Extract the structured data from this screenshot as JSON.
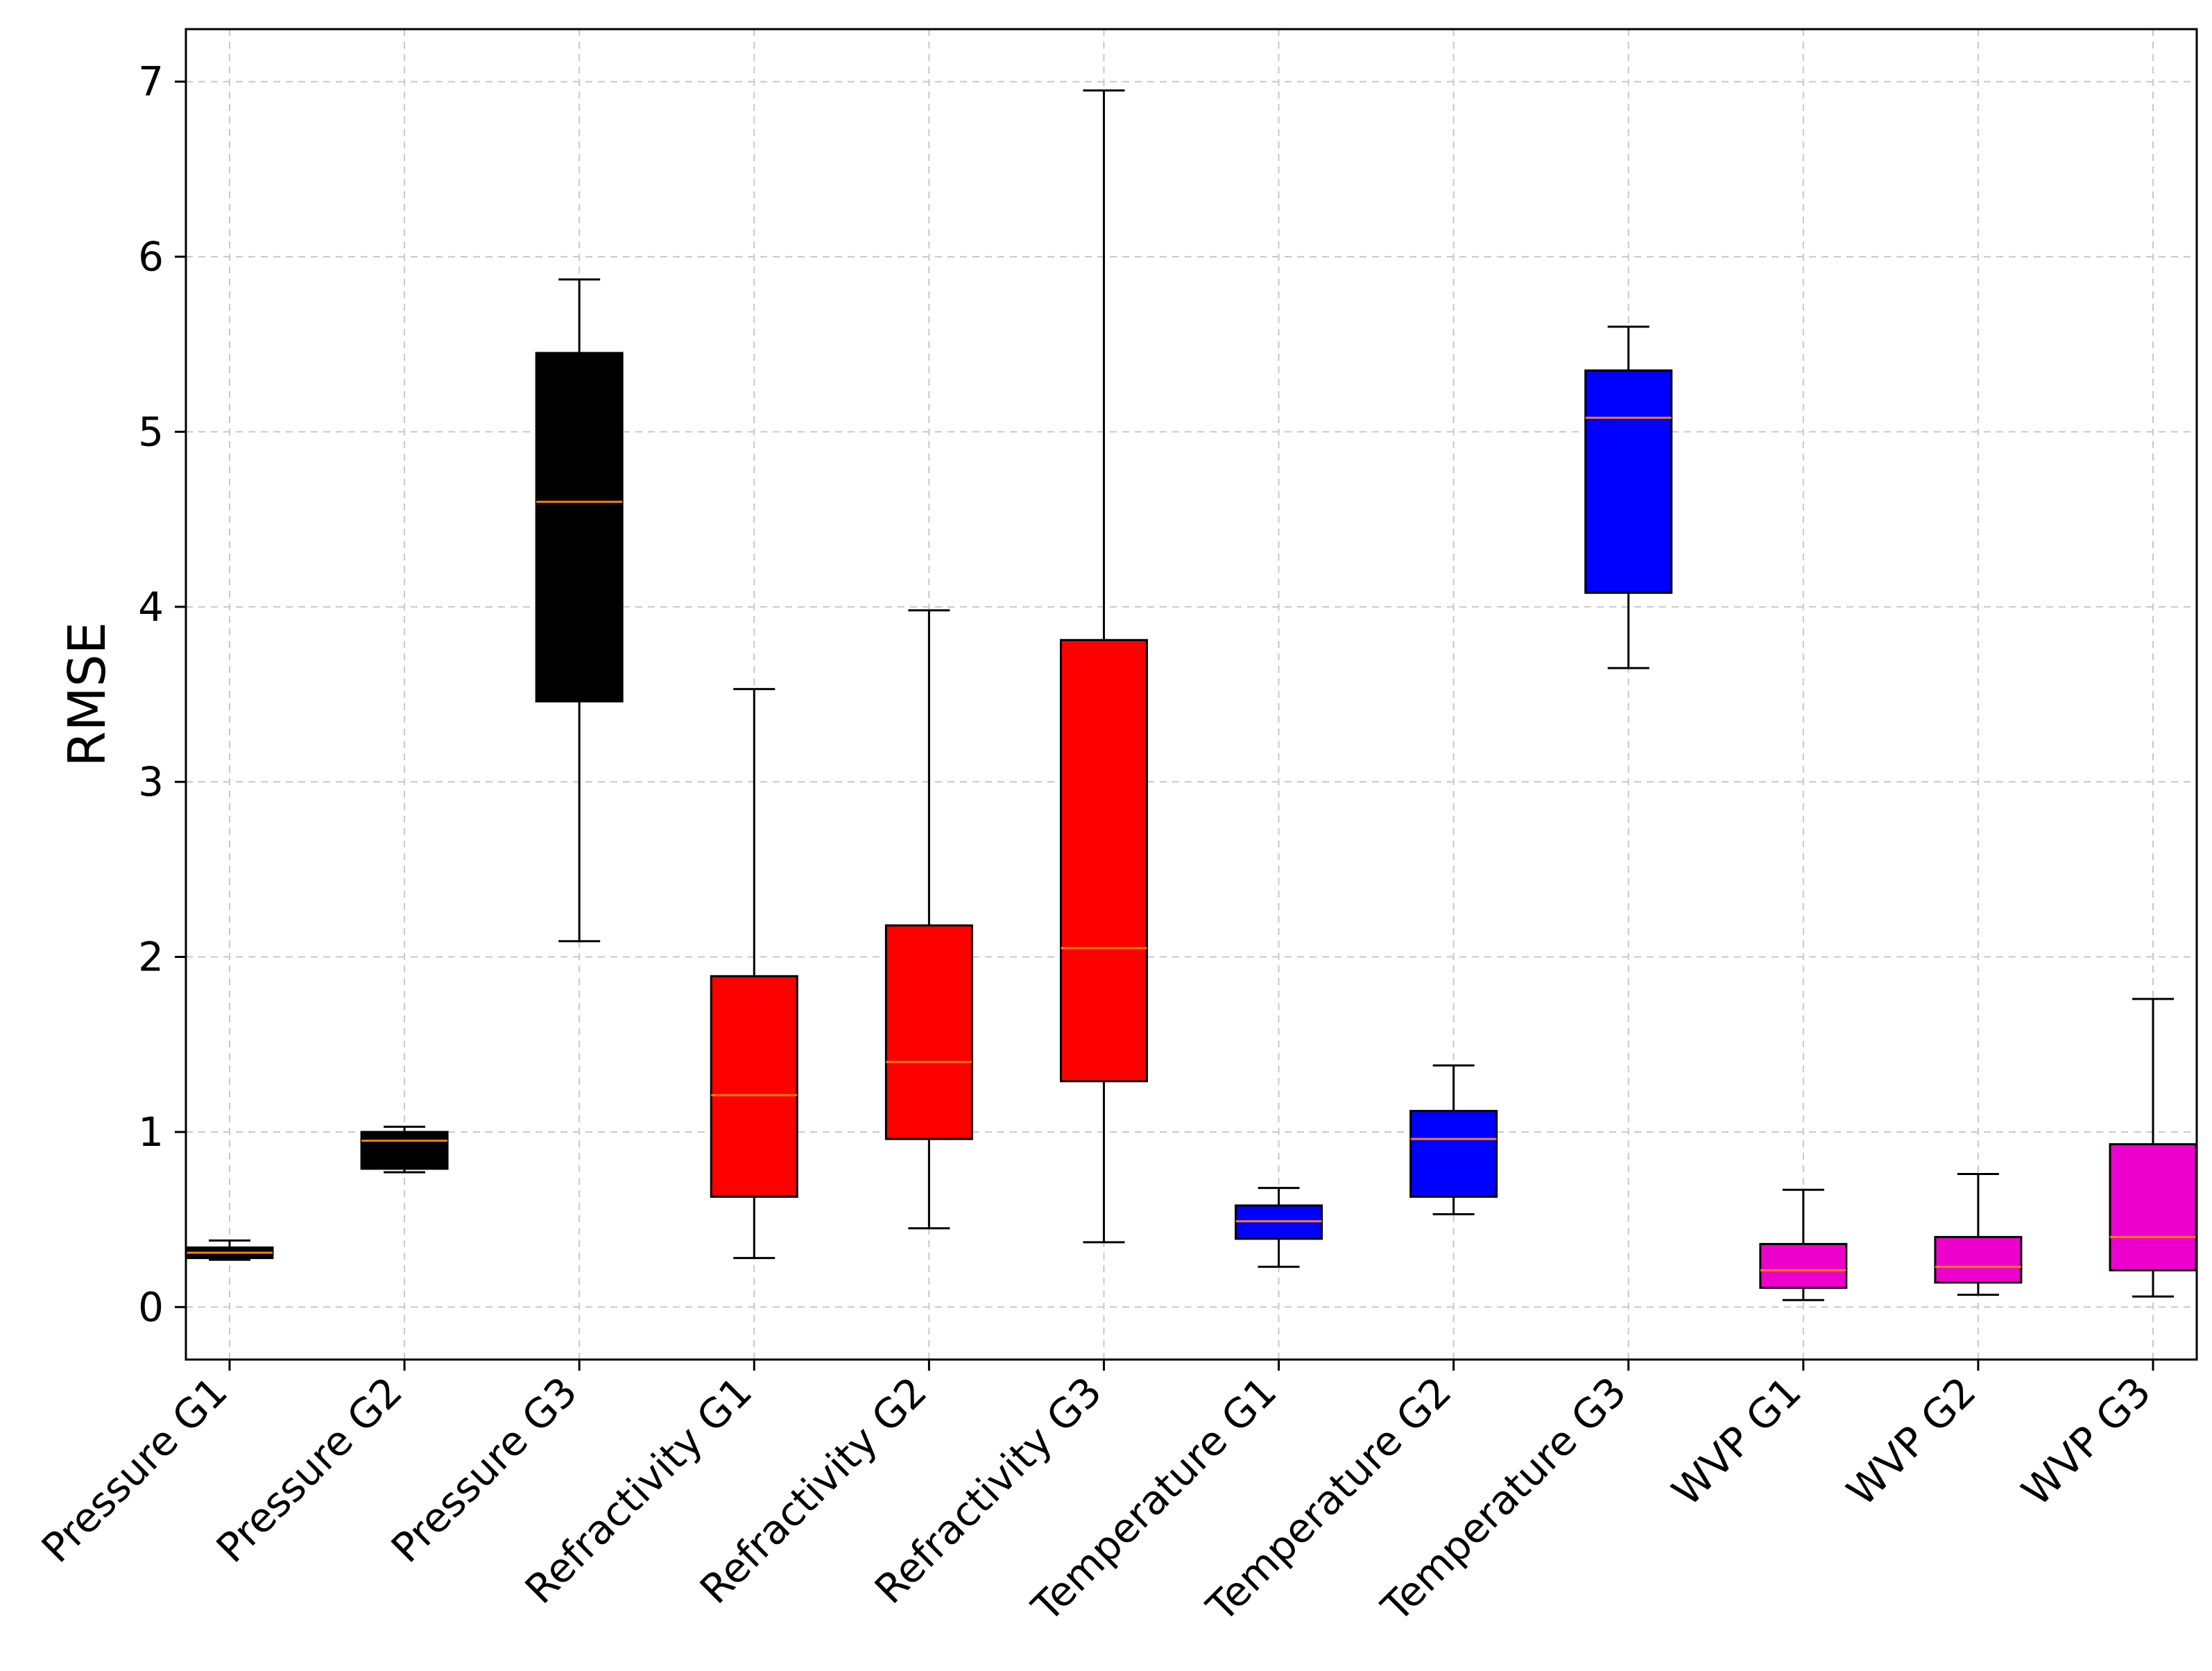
{
  "chart_data": {
    "type": "box",
    "title": "",
    "xlabel": "",
    "ylabel": "RMSE",
    "ylim": [
      -0.3,
      7.3
    ],
    "yticks": [
      0,
      1,
      2,
      3,
      4,
      5,
      6,
      7
    ],
    "grid": true,
    "median_color": "#ff7f0e",
    "boxes": [
      {
        "label": "Pressure G1",
        "color": "#000000",
        "whisker_low": 0.27,
        "q1": 0.28,
        "median": 0.31,
        "q3": 0.34,
        "whisker_high": 0.38
      },
      {
        "label": "Pressure G2",
        "color": "#000000",
        "whisker_low": 0.77,
        "q1": 0.79,
        "median": 0.95,
        "q3": 1.0,
        "whisker_high": 1.03
      },
      {
        "label": "Pressure G3",
        "color": "#000000",
        "whisker_low": 2.09,
        "q1": 3.46,
        "median": 4.6,
        "q3": 5.45,
        "whisker_high": 5.87
      },
      {
        "label": "Refractivity G1",
        "color": "#ff0000",
        "whisker_low": 0.28,
        "q1": 0.63,
        "median": 1.21,
        "q3": 1.89,
        "whisker_high": 3.53
      },
      {
        "label": "Refractivity G2",
        "color": "#ff0000",
        "whisker_low": 0.45,
        "q1": 0.96,
        "median": 1.4,
        "q3": 2.18,
        "whisker_high": 3.98
      },
      {
        "label": "Refractivity G3",
        "color": "#ff0000",
        "whisker_low": 0.37,
        "q1": 1.29,
        "median": 2.05,
        "q3": 3.81,
        "whisker_high": 6.95
      },
      {
        "label": "Temperature G1",
        "color": "#0000ff",
        "whisker_low": 0.23,
        "q1": 0.39,
        "median": 0.49,
        "q3": 0.58,
        "whisker_high": 0.68
      },
      {
        "label": "Temperature G2",
        "color": "#0000ff",
        "whisker_low": 0.53,
        "q1": 0.63,
        "median": 0.96,
        "q3": 1.12,
        "whisker_high": 1.38
      },
      {
        "label": "Temperature G3",
        "color": "#0000ff",
        "whisker_low": 3.65,
        "q1": 4.08,
        "median": 5.08,
        "q3": 5.35,
        "whisker_high": 5.6
      },
      {
        "label": "WVP G1",
        "color": "#ee00cc",
        "whisker_low": 0.04,
        "q1": 0.11,
        "median": 0.21,
        "q3": 0.36,
        "whisker_high": 0.67
      },
      {
        "label": "WVP G2",
        "color": "#ee00cc",
        "whisker_low": 0.07,
        "q1": 0.14,
        "median": 0.23,
        "q3": 0.4,
        "whisker_high": 0.76
      },
      {
        "label": "WVP G3",
        "color": "#ee00cc",
        "whisker_low": 0.06,
        "q1": 0.21,
        "median": 0.4,
        "q3": 0.93,
        "whisker_high": 1.76
      }
    ]
  }
}
